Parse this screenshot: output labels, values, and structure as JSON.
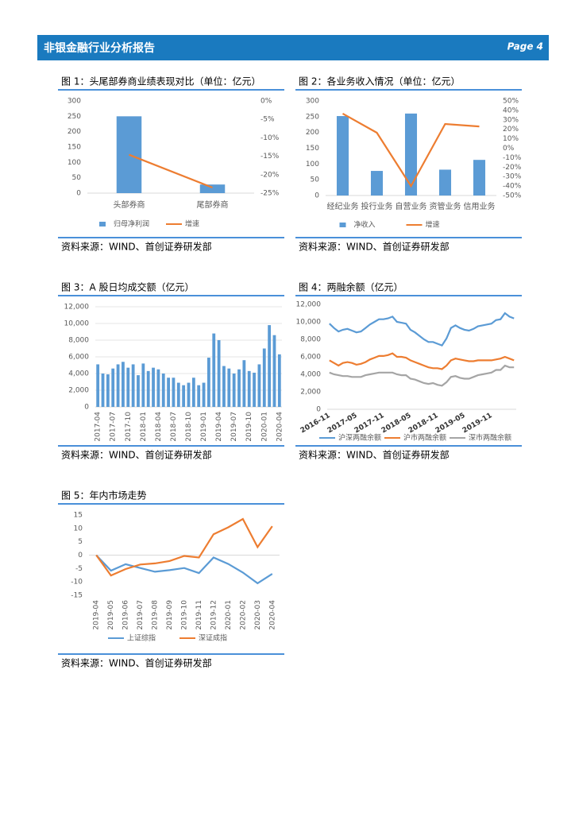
{
  "header": {
    "title": "非银金融行业分析报告",
    "page": "Page 4"
  },
  "chart_data": [
    {
      "type": "combo",
      "title": "图 1：头尾部券商业绩表现对比（单位：亿元）",
      "source": "资料来源：WIND、首创证券研发部",
      "categories": [
        "头部券商",
        "尾部券商"
      ],
      "series": [
        {
          "name": "归母净利润",
          "color": "#5b9bd5",
          "type": "bar",
          "values": [
            250,
            28
          ]
        },
        {
          "name": "增速",
          "color": "#ed7d31",
          "type": "line",
          "axis": "y2",
          "values": [
            -14.6,
            -23.5
          ]
        }
      ],
      "ylim": [
        0,
        300
      ],
      "yticks": [
        0,
        50,
        100,
        150,
        200,
        250,
        300
      ],
      "y2lim": [
        -25,
        0
      ],
      "y2ticks": [
        {
          "value": -25,
          "label": "-25%"
        },
        {
          "value": -20,
          "label": "-20%"
        },
        {
          "value": -15,
          "label": "-15%"
        },
        {
          "value": -10,
          "label": "-10%"
        },
        {
          "value": -5,
          "label": "-5%"
        },
        {
          "value": 0,
          "label": "0%"
        }
      ],
      "grid": false
    },
    {
      "type": "combo",
      "title": "图 2：各业务收入情况（单位：亿元）",
      "source": "资料来源：WIND、首创证券研发部",
      "categories": [
        "经纪业务",
        "投行业务",
        "自营业务",
        "资管业务",
        "信用业务"
      ],
      "series": [
        {
          "name": "净收入",
          "color": "#5b9bd5",
          "type": "bar",
          "values": [
            252,
            78,
            260,
            82,
            113
          ]
        },
        {
          "name": "增速",
          "color": "#ed7d31",
          "type": "line",
          "axis": "y2",
          "values": [
            36.6,
            16.4,
            -40,
            25.6,
            23
          ]
        }
      ],
      "ylim": [
        0,
        300
      ],
      "yticks": [
        0,
        50,
        100,
        150,
        200,
        250,
        300
      ],
      "y2lim": [
        -50,
        50
      ],
      "y2ticks": [
        {
          "value": -50,
          "label": "-50%"
        },
        {
          "value": -40,
          "label": "-40%"
        },
        {
          "value": -30,
          "label": "-30%"
        },
        {
          "value": -20,
          "label": "-20%"
        },
        {
          "value": -10,
          "label": "-10%"
        },
        {
          "value": 0,
          "label": "0%"
        },
        {
          "value": 10,
          "label": "10%"
        },
        {
          "value": 20,
          "label": "20%"
        },
        {
          "value": 30,
          "label": "30%"
        },
        {
          "value": 40,
          "label": "40%"
        },
        {
          "value": 50,
          "label": "50%"
        }
      ],
      "grid": false
    },
    {
      "type": "bar",
      "title": "图 3：A 股日均成交额（亿元）",
      "source": "资料来源：WIND、首创证券研发部",
      "categories": [
        "2017-04",
        null,
        null,
        "2017-07",
        null,
        null,
        "2017-10",
        null,
        null,
        "2018-01",
        null,
        null,
        "2018-04",
        null,
        null,
        "2018-07",
        null,
        null,
        "2018-10",
        null,
        null,
        "2019-01",
        null,
        null,
        "2019-04",
        null,
        null,
        "2019-07",
        null,
        null,
        "2019-10",
        null,
        null,
        "2020-01",
        null,
        null,
        "2020-04"
      ],
      "values": [
        5100,
        4000,
        3900,
        4600,
        5100,
        5400,
        4700,
        5100,
        3800,
        5200,
        4300,
        4700,
        4500,
        4000,
        3500,
        3500,
        2900,
        2600,
        2900,
        3500,
        2600,
        2900,
        5900,
        8800,
        8000,
        4900,
        4600,
        4000,
        4500,
        5600,
        4300,
        4100,
        5100,
        7000,
        9800,
        8600,
        6300
      ],
      "color": "#5b9bd5",
      "ylim": [
        0,
        12000
      ],
      "yticks": [
        0,
        {
          "value": 2000,
          "label": "2,000"
        },
        {
          "value": 4000,
          "label": "4,000"
        },
        {
          "value": 6000,
          "label": "6,000"
        },
        {
          "value": 8000,
          "label": "8,000"
        },
        {
          "value": 10000,
          "label": "10,000"
        },
        {
          "value": 12000,
          "label": "12,000"
        }
      ],
      "grid": true
    },
    {
      "type": "line",
      "title": "图 4：两融余额（亿元）",
      "source": "资料来源：WIND、首创证券研发部",
      "categories": [
        "2016-11",
        null,
        null,
        null,
        null,
        null,
        "2017-05",
        null,
        null,
        null,
        null,
        null,
        "2017-11",
        null,
        null,
        null,
        null,
        null,
        "2018-05",
        null,
        null,
        null,
        null,
        null,
        "2018-11",
        null,
        null,
        null,
        null,
        null,
        "2019-05",
        null,
        null,
        null,
        null,
        null,
        "2019-11",
        null,
        null,
        null,
        null,
        null
      ],
      "series": [
        {
          "name": "沪深两融余额",
          "color": "#5b9bd5",
          "values": [
            9800,
            9300,
            8900,
            9100,
            9200,
            9000,
            8800,
            8900,
            9300,
            9700,
            10000,
            10300,
            10300,
            10400,
            10600,
            10000,
            9900,
            9800,
            9100,
            8800,
            8400,
            8000,
            7700,
            7700,
            7500,
            7300,
            8100,
            9300,
            9600,
            9300,
            9100,
            9000,
            9200,
            9500,
            9600,
            9700,
            9800,
            10200,
            10300,
            11000,
            10600,
            10400
          ]
        },
        {
          "name": "沪市两融余额",
          "color": "#ed7d31",
          "values": [
            5600,
            5300,
            5000,
            5300,
            5400,
            5300,
            5100,
            5200,
            5400,
            5700,
            5900,
            6100,
            6100,
            6200,
            6400,
            6000,
            6000,
            5900,
            5600,
            5400,
            5200,
            5000,
            4800,
            4700,
            4700,
            4600,
            5000,
            5600,
            5800,
            5700,
            5600,
            5500,
            5500,
            5600,
            5600,
            5600,
            5600,
            5700,
            5800,
            6000,
            5800,
            5600
          ]
        },
        {
          "name": "深市两融余额",
          "color": "#a5a5a5",
          "values": [
            4200,
            4000,
            3900,
            3800,
            3800,
            3700,
            3700,
            3700,
            3900,
            4000,
            4100,
            4200,
            4200,
            4200,
            4200,
            4000,
            3900,
            3900,
            3500,
            3400,
            3200,
            3000,
            2900,
            3000,
            2800,
            2700,
            3100,
            3700,
            3800,
            3600,
            3500,
            3500,
            3700,
            3900,
            4000,
            4100,
            4200,
            4500,
            4500,
            5000,
            4800,
            4800
          ]
        }
      ],
      "ylim": [
        0,
        12000
      ],
      "yticks": [
        0,
        {
          "value": 2000,
          "label": "2,000"
        },
        {
          "value": 4000,
          "label": "4,000"
        },
        {
          "value": 6000,
          "label": "6,000"
        },
        {
          "value": 8000,
          "label": "8,000"
        },
        {
          "value": 10000,
          "label": "10,000"
        },
        {
          "value": 12000,
          "label": "12,000"
        }
      ],
      "grid": false
    },
    {
      "type": "line",
      "title": "图 5：年内市场走势",
      "source": "资料来源：WIND、首创证券研发部",
      "categories": [
        "2019-04",
        "2019-05",
        "2019-06",
        "2019-07",
        "2019-08",
        "2019-09",
        "2019-10",
        "2019-11",
        "2019-12",
        "2020-01",
        "2020-02",
        "2020-03",
        "2020-04"
      ],
      "series": [
        {
          "name": "上证综指",
          "color": "#5b9bd5",
          "values": [
            0,
            -5.8,
            -3.4,
            -4.8,
            -6.2,
            -5.6,
            -4.8,
            -6.7,
            -0.9,
            -3.3,
            -6.5,
            -10.5,
            -7.0
          ]
        },
        {
          "name": "深证成指",
          "color": "#ed7d31",
          "values": [
            0,
            -7.6,
            -5.2,
            -3.5,
            -3.1,
            -2.2,
            -0.3,
            -0.9,
            7.8,
            10.4,
            13.5,
            3.0,
            10.8
          ]
        }
      ],
      "ylim": [
        -15,
        15
      ],
      "yticks": [
        -15,
        -10,
        -5,
        0,
        5,
        10,
        15
      ],
      "grid": false
    }
  ]
}
